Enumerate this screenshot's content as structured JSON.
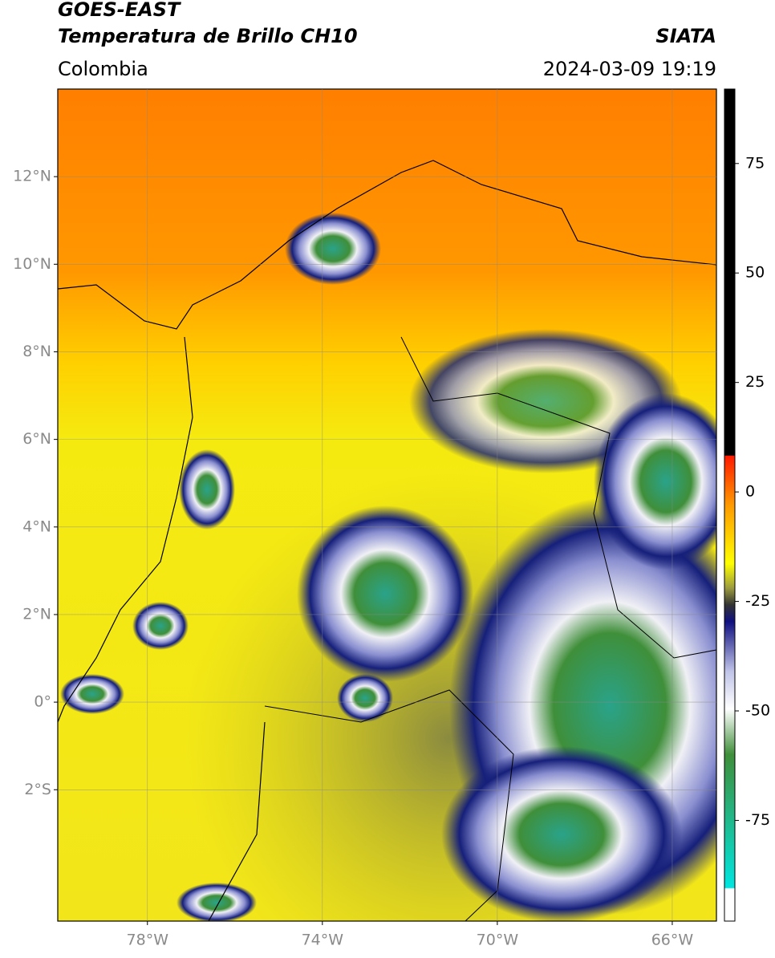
{
  "header": {
    "title": "GOES-EAST",
    "subtitle": "Temperatura de Brillo CH10",
    "source": "SIATA",
    "region": "Colombia",
    "datetime": "2024-03-09 19:19"
  },
  "map": {
    "xlim": [
      -80.05,
      -64.99
    ],
    "ylim": [
      -5,
      14
    ],
    "xticks": [
      {
        "value": -78,
        "label": "78°W"
      },
      {
        "value": -74,
        "label": "74°W"
      },
      {
        "value": -70,
        "label": "70°W"
      },
      {
        "value": -66,
        "label": "66°W"
      }
    ],
    "yticks": [
      {
        "value": 12,
        "label": "12°N"
      },
      {
        "value": 10,
        "label": "10°N"
      },
      {
        "value": 8,
        "label": "8°N"
      },
      {
        "value": 6,
        "label": "6°N"
      },
      {
        "value": 4,
        "label": "4°N"
      },
      {
        "value": 2,
        "label": "2°N"
      },
      {
        "value": 0,
        "label": "0°"
      },
      {
        "value": -2,
        "label": "2°S"
      }
    ]
  },
  "colorbar": {
    "lim": [
      -98,
      92
    ],
    "ticks": [
      75,
      50,
      25,
      0,
      -25,
      -50,
      -75
    ]
  }
}
